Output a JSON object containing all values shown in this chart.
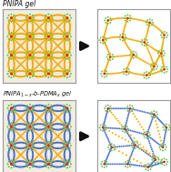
{
  "bg_color": "#ffffff",
  "panel_bg_left": "#f0ece0",
  "panel_bg_right": "#ffffff",
  "title1": "PNIPA gel",
  "title2": "PNIPA$_{1-x}$-b-PDMA$_x$ gel",
  "orange": "#F5A800",
  "green": "#6DC44A",
  "red": "#E02020",
  "blue": "#4A6FCC",
  "arrow_color": "#111111",
  "border_color": "#999999",
  "font_size": 5.5
}
